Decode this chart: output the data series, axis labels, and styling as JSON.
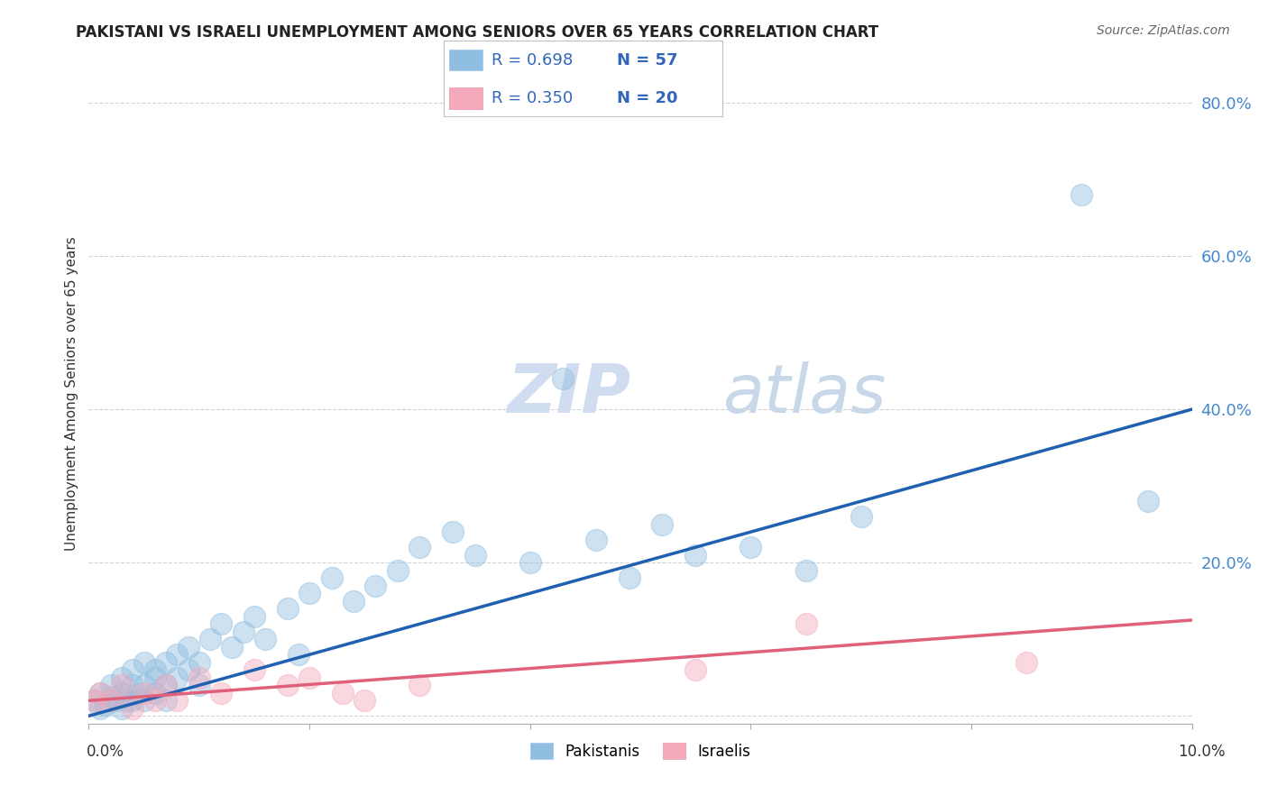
{
  "title": "PAKISTANI VS ISRAELI UNEMPLOYMENT AMONG SENIORS OVER 65 YEARS CORRELATION CHART",
  "source": "Source: ZipAtlas.com",
  "ylabel": "Unemployment Among Seniors over 65 years",
  "xlim": [
    0.0,
    0.1
  ],
  "ylim": [
    -0.01,
    0.85
  ],
  "yticks": [
    0.0,
    0.2,
    0.4,
    0.6,
    0.8
  ],
  "ytick_labels": [
    "",
    "20.0%",
    "40.0%",
    "60.0%",
    "80.0%"
  ],
  "legend_r1": "R = 0.698",
  "legend_n1": "N = 57",
  "legend_r2": "R = 0.350",
  "legend_n2": "N = 20",
  "pakistani_color": "#90BEE0",
  "israeli_color": "#F5AABB",
  "line_pakistani": "#2060B0",
  "line_israeli": "#E0607A",
  "watermark_zip": "ZIP",
  "watermark_atlas": "atlas",
  "pakistani_x": [
    0.0005,
    0.001,
    0.001,
    0.0015,
    0.002,
    0.002,
    0.0025,
    0.003,
    0.003,
    0.003,
    0.0035,
    0.004,
    0.004,
    0.004,
    0.0045,
    0.005,
    0.005,
    0.005,
    0.006,
    0.006,
    0.006,
    0.007,
    0.007,
    0.007,
    0.008,
    0.008,
    0.009,
    0.009,
    0.01,
    0.01,
    0.011,
    0.012,
    0.013,
    0.014,
    0.015,
    0.016,
    0.018,
    0.019,
    0.02,
    0.022,
    0.024,
    0.026,
    0.028,
    0.03,
    0.033,
    0.035,
    0.04,
    0.043,
    0.046,
    0.049,
    0.052,
    0.055,
    0.06,
    0.065,
    0.07,
    0.09,
    0.096
  ],
  "pakistani_y": [
    0.02,
    0.03,
    0.01,
    0.015,
    0.025,
    0.04,
    0.02,
    0.01,
    0.03,
    0.05,
    0.02,
    0.04,
    0.06,
    0.02,
    0.03,
    0.04,
    0.02,
    0.07,
    0.05,
    0.03,
    0.06,
    0.04,
    0.07,
    0.02,
    0.05,
    0.08,
    0.06,
    0.09,
    0.07,
    0.04,
    0.1,
    0.12,
    0.09,
    0.11,
    0.13,
    0.1,
    0.14,
    0.08,
    0.16,
    0.18,
    0.15,
    0.17,
    0.19,
    0.22,
    0.24,
    0.21,
    0.2,
    0.44,
    0.23,
    0.18,
    0.25,
    0.21,
    0.22,
    0.19,
    0.26,
    0.68,
    0.28
  ],
  "israeli_x": [
    0.0005,
    0.001,
    0.002,
    0.003,
    0.004,
    0.005,
    0.006,
    0.007,
    0.008,
    0.01,
    0.012,
    0.015,
    0.018,
    0.02,
    0.023,
    0.025,
    0.03,
    0.055,
    0.065,
    0.085
  ],
  "israeli_y": [
    0.02,
    0.03,
    0.02,
    0.04,
    0.01,
    0.03,
    0.02,
    0.04,
    0.02,
    0.05,
    0.03,
    0.06,
    0.04,
    0.05,
    0.03,
    0.02,
    0.04,
    0.06,
    0.12,
    0.07
  ],
  "pakistani_line_x": [
    0.0,
    0.1
  ],
  "pakistani_line_y": [
    0.0,
    0.4
  ],
  "israeli_line_x": [
    0.0,
    0.1
  ],
  "israeli_line_y": [
    0.02,
    0.125
  ]
}
